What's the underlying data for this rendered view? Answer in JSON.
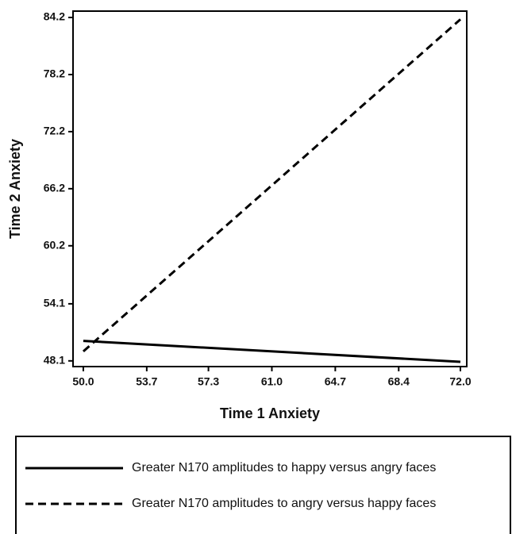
{
  "chart_data": {
    "type": "line",
    "x_label": "Time 1 Anxiety",
    "y_label": "Time 2 Anxiety",
    "x": [
      50,
      72
    ],
    "series": [
      {
        "name": "Greater N170 amplitudes to happy versus angry faces",
        "color": "#000000",
        "dashed": false,
        "values": [
          50.2,
          48.0
        ]
      },
      {
        "name": "Greater N170 amplitudes to angry versus happy faces",
        "color": "#000000",
        "dashed": true,
        "values": [
          49.1,
          84.0
        ]
      }
    ],
    "xlim": [
      49.4,
      72.37
    ],
    "xticks": [
      {
        "value": 50,
        "label": "50.0"
      },
      53.7,
      57.3,
      {
        "value": 61,
        "label": "61.0"
      },
      64.7,
      68.4,
      {
        "value": 72,
        "label": "72.0"
      }
    ],
    "ylim": [
      47.5,
      84.87
    ],
    "yticks": [
      48.1,
      54.1,
      60.2,
      66.2,
      72.2,
      78.2,
      84.2
    ],
    "legend": "bottom"
  }
}
